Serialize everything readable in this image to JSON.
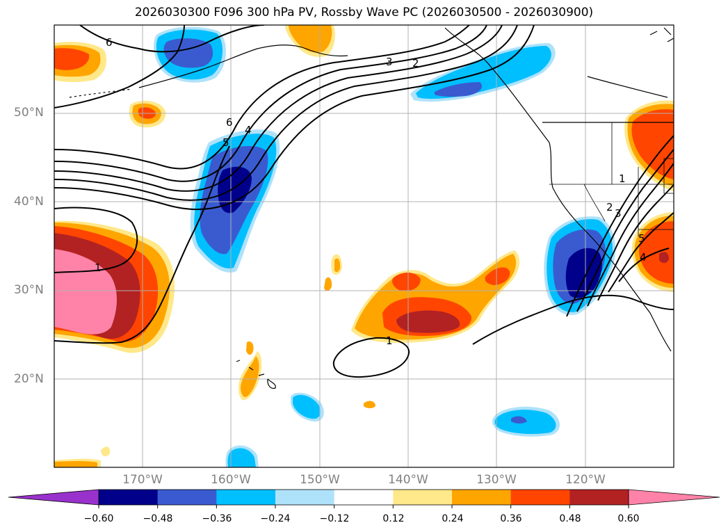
{
  "title": "2026030300 F096 300 hPa PV, Rossby Wave PC (2026030500 - 2026030900)",
  "latitude_labels": [
    "50°N",
    "40°N",
    "30°N",
    "20°N"
  ],
  "longitude_labels": [
    "170°W",
    "160°W",
    "150°W",
    "140°W",
    "130°W",
    "120°W"
  ],
  "colorbar": {
    "ticks": [
      "−0.60",
      "−0.48",
      "−0.36",
      "−0.24",
      "−0.12",
      "0.12",
      "0.24",
      "0.36",
      "0.48",
      "0.60"
    ],
    "colors": [
      "#9932CC",
      "#00008B",
      "#3A5BD0",
      "#00BFFF",
      "#AEE2FA",
      "#FFFFFF",
      "#FFE88A",
      "#FFA500",
      "#FF4500",
      "#B22222",
      "#FF83A8"
    ]
  },
  "contour_labels": [
    "6",
    "3",
    "2",
    "6",
    "5",
    "4",
    "1",
    "1",
    "1",
    "2",
    "3",
    "4",
    "5"
  ],
  "colors": {
    "grid": "#b0b0b0",
    "coast": "#000000",
    "contour": "#000000"
  }
}
